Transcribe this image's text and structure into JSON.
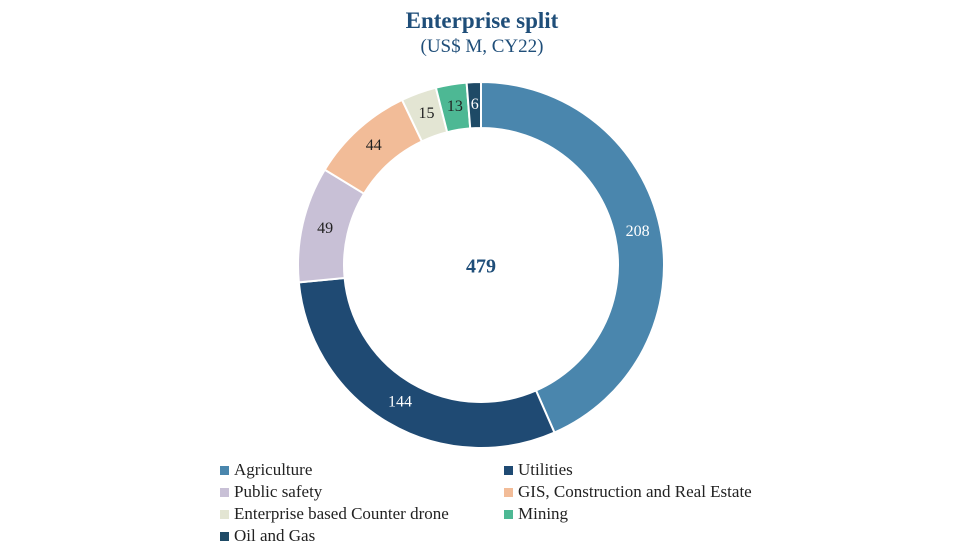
{
  "chart_data": {
    "type": "pie",
    "title": "Enterprise split",
    "subtitle": "(US$ M, CY22)",
    "center_label": "479",
    "categories": [
      "Agriculture",
      "Utilities",
      "Public safety",
      "GIS, Construction and Real Estate",
      "Enterprise based Counter drone",
      "Mining",
      "Oil and Gas"
    ],
    "values": [
      208,
      144,
      49,
      44,
      15,
      13,
      6
    ],
    "data_labels": [
      "208",
      "144",
      "49",
      "44",
      "15",
      "13",
      "6"
    ],
    "colors": [
      "#4a86ad",
      "#1f4a73",
      "#c8c0d6",
      "#f2bc98",
      "#e3e5d3",
      "#4db894",
      "#1e4a66"
    ],
    "label_colors": [
      "#ffffff",
      "#ffffff",
      "#222222",
      "#222222",
      "#222222",
      "#222222",
      "#ffffff"
    ],
    "legend_position": "bottom",
    "hole": "donut"
  }
}
